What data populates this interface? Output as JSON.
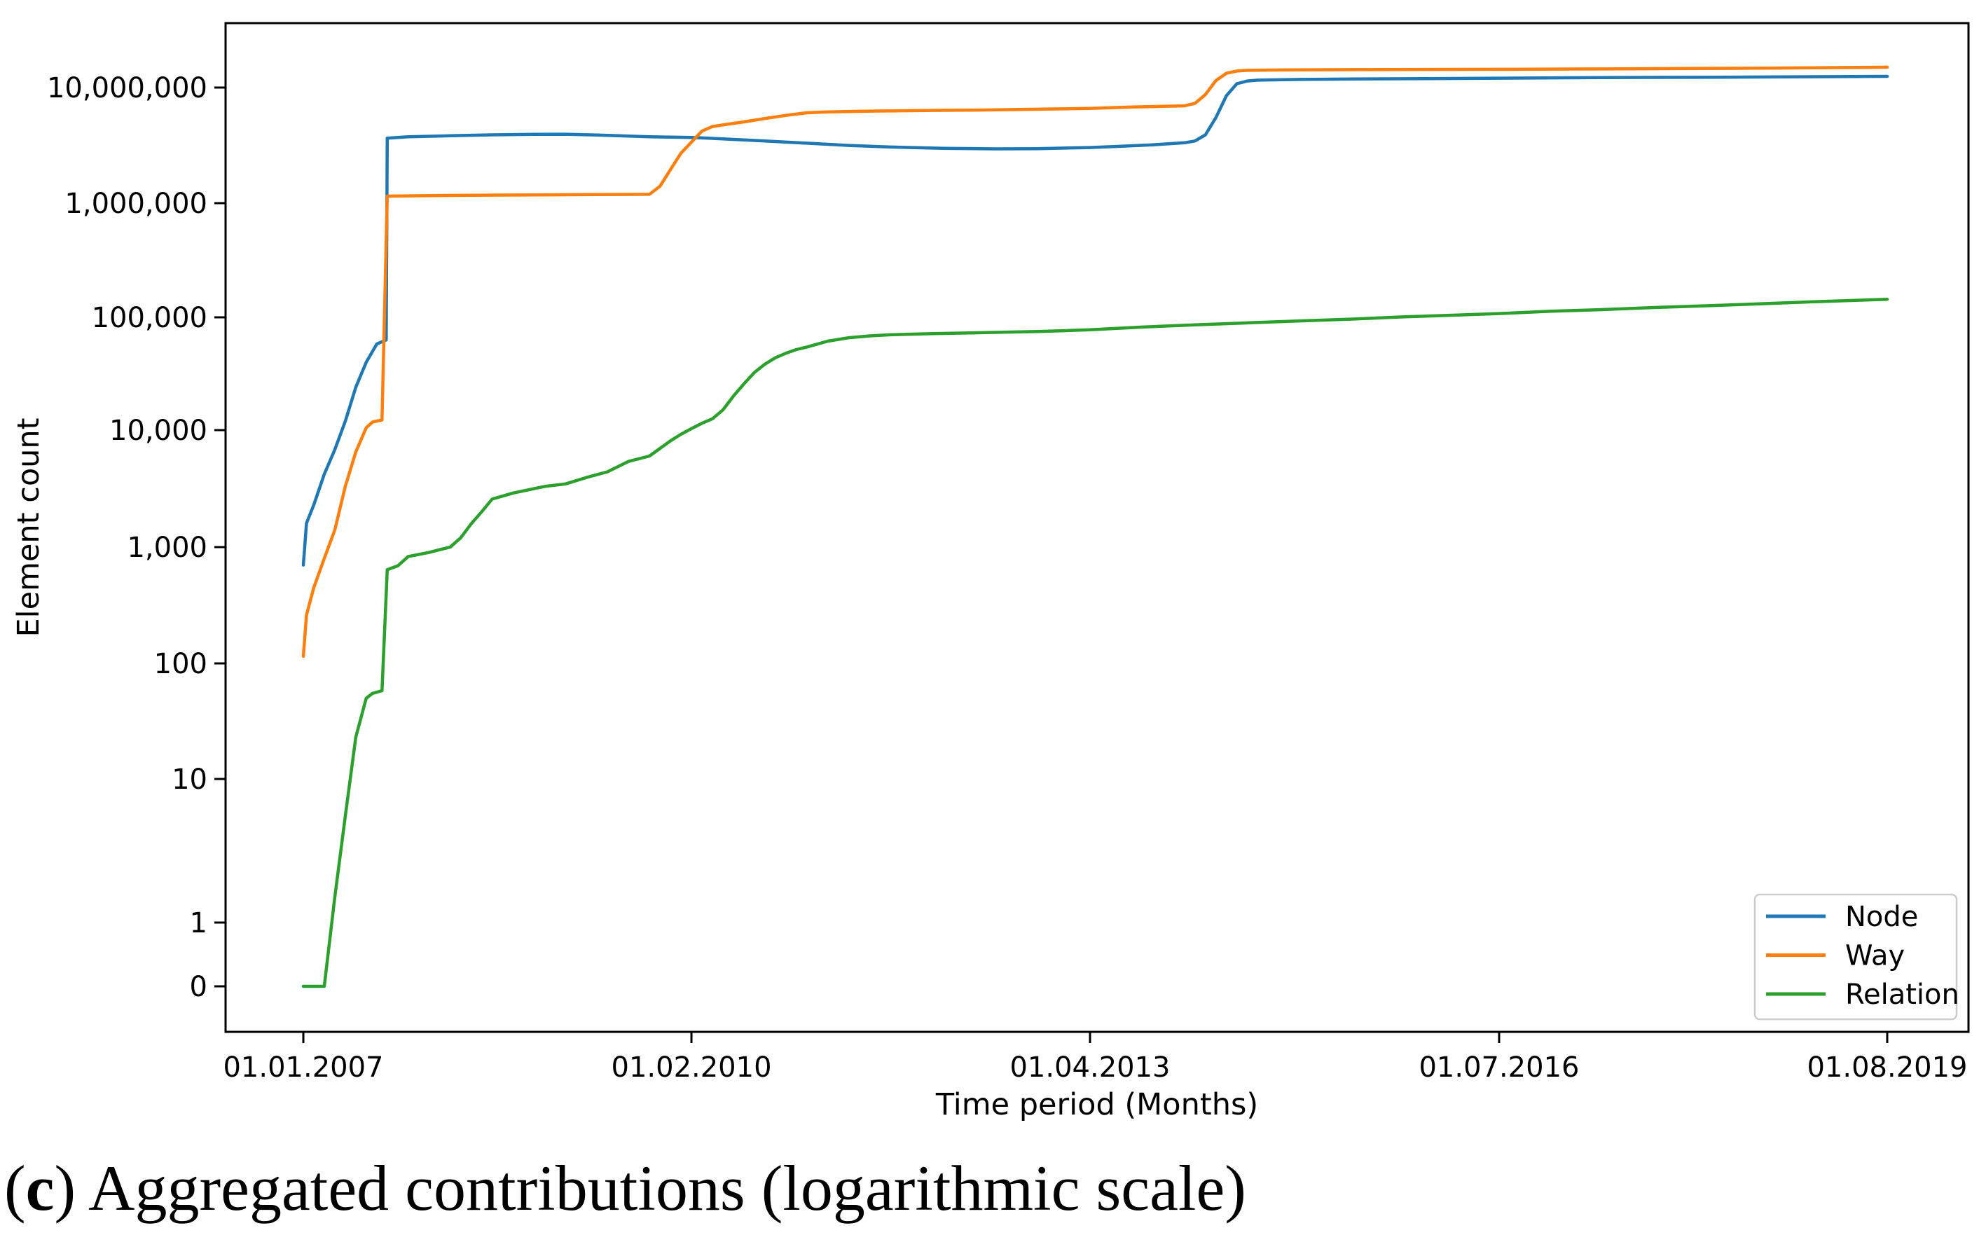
{
  "figure": {
    "caption": {
      "paren_open": "(",
      "bold_letter": "c",
      "rest": ") Aggregated contributions (logarithmic scale)"
    }
  },
  "chart_data": {
    "type": "line",
    "title": "",
    "xlabel": "Time period (Months)",
    "ylabel": "Element count",
    "y_scale": "symlog",
    "grid": false,
    "x_range_months": [
      0,
      151
    ],
    "x_ticks": [
      {
        "label": "01.01.2007",
        "month": 0
      },
      {
        "label": "01.02.2010",
        "month": 37
      },
      {
        "label": "01.04.2013",
        "month": 75
      },
      {
        "label": "01.07.2016",
        "month": 114
      },
      {
        "label": "01.08.2019",
        "month": 151
      }
    ],
    "y_ticks": [
      {
        "label": "10,000,000",
        "value": 10000000
      },
      {
        "label": "1,000,000",
        "value": 1000000
      },
      {
        "label": "100,000",
        "value": 100000
      },
      {
        "label": "10,000",
        "value": 10000
      },
      {
        "label": "1,000",
        "value": 1000
      },
      {
        "label": "100",
        "value": 100
      },
      {
        "label": "10",
        "value": 10
      },
      {
        "label": "1",
        "value": 1
      },
      {
        "label": "0",
        "value": 0
      }
    ],
    "legend": {
      "position": "lower right"
    },
    "series": [
      {
        "name": "Node",
        "color": "#1f77b4",
        "points": [
          [
            0,
            700
          ],
          [
            0.3,
            1600
          ],
          [
            1,
            2300
          ],
          [
            2,
            4200
          ],
          [
            3,
            6800
          ],
          [
            4,
            12000
          ],
          [
            5,
            24000
          ],
          [
            6,
            40000
          ],
          [
            7,
            58000
          ],
          [
            7.9,
            63000
          ],
          [
            8,
            3650000
          ],
          [
            10,
            3750000
          ],
          [
            14,
            3830000
          ],
          [
            18,
            3900000
          ],
          [
            22,
            3940000
          ],
          [
            25,
            3950000
          ],
          [
            28,
            3880000
          ],
          [
            31,
            3800000
          ],
          [
            33,
            3750000
          ],
          [
            35,
            3730000
          ],
          [
            37,
            3700000
          ],
          [
            40,
            3600000
          ],
          [
            44,
            3450000
          ],
          [
            48,
            3300000
          ],
          [
            52,
            3160000
          ],
          [
            56,
            3060000
          ],
          [
            61,
            2980000
          ],
          [
            66,
            2950000
          ],
          [
            70,
            2960000
          ],
          [
            75,
            3030000
          ],
          [
            78,
            3110000
          ],
          [
            81,
            3200000
          ],
          [
            84,
            3330000
          ],
          [
            85,
            3450000
          ],
          [
            86,
            3900000
          ],
          [
            87,
            5500000
          ],
          [
            88,
            8500000
          ],
          [
            89,
            10800000
          ],
          [
            90,
            11400000
          ],
          [
            91,
            11600000
          ],
          [
            95,
            11750000
          ],
          [
            100,
            11850000
          ],
          [
            107,
            11950000
          ],
          [
            114,
            12050000
          ],
          [
            121,
            12150000
          ],
          [
            128,
            12250000
          ],
          [
            135,
            12300000
          ],
          [
            143,
            12400000
          ],
          [
            151,
            12500000
          ]
        ]
      },
      {
        "name": "Way",
        "color": "#ff7f0e",
        "points": [
          [
            0,
            115
          ],
          [
            0.3,
            260
          ],
          [
            1,
            450
          ],
          [
            2,
            800
          ],
          [
            3,
            1400
          ],
          [
            4,
            3300
          ],
          [
            5,
            6500
          ],
          [
            6,
            10500
          ],
          [
            6.6,
            11800
          ],
          [
            7.5,
            12300
          ],
          [
            8,
            1150000
          ],
          [
            12,
            1162000
          ],
          [
            16,
            1170000
          ],
          [
            20,
            1176000
          ],
          [
            24,
            1181000
          ],
          [
            28,
            1186000
          ],
          [
            33,
            1192000
          ],
          [
            34,
            1400000
          ],
          [
            35,
            1950000
          ],
          [
            36,
            2700000
          ],
          [
            37,
            3370000
          ],
          [
            38,
            4200000
          ],
          [
            39,
            4600000
          ],
          [
            40,
            4750000
          ],
          [
            42,
            5050000
          ],
          [
            44,
            5400000
          ],
          [
            46,
            5750000
          ],
          [
            48,
            6050000
          ],
          [
            50,
            6150000
          ],
          [
            53,
            6230000
          ],
          [
            57,
            6300000
          ],
          [
            61,
            6350000
          ],
          [
            65,
            6400000
          ],
          [
            70,
            6500000
          ],
          [
            75,
            6600000
          ],
          [
            79,
            6780000
          ],
          [
            82,
            6880000
          ],
          [
            84,
            6950000
          ],
          [
            85,
            7300000
          ],
          [
            86,
            8700000
          ],
          [
            87,
            11500000
          ],
          [
            88,
            13300000
          ],
          [
            89,
            13900000
          ],
          [
            90,
            14100000
          ],
          [
            93,
            14200000
          ],
          [
            100,
            14300000
          ],
          [
            107,
            14350000
          ],
          [
            114,
            14400000
          ],
          [
            121,
            14480000
          ],
          [
            128,
            14550000
          ],
          [
            135,
            14650000
          ],
          [
            143,
            14800000
          ],
          [
            151,
            15000000
          ]
        ]
      },
      {
        "name": "Relation",
        "color": "#2ca02c",
        "points": [
          [
            0,
            0
          ],
          [
            2,
            0
          ],
          [
            3,
            1.5
          ],
          [
            4,
            5.5
          ],
          [
            5,
            23
          ],
          [
            6,
            50
          ],
          [
            6.6,
            55
          ],
          [
            7.5,
            58
          ],
          [
            8,
            640
          ],
          [
            9,
            690
          ],
          [
            10,
            830
          ],
          [
            12,
            900
          ],
          [
            13,
            950
          ],
          [
            14,
            1000
          ],
          [
            15,
            1200
          ],
          [
            16,
            1580
          ],
          [
            17,
            2000
          ],
          [
            18,
            2570
          ],
          [
            20,
            2900
          ],
          [
            23,
            3300
          ],
          [
            25,
            3470
          ],
          [
            27,
            3940
          ],
          [
            29,
            4400
          ],
          [
            31,
            5400
          ],
          [
            33,
            6000
          ],
          [
            35,
            8100
          ],
          [
            36,
            9200
          ],
          [
            37,
            10300
          ],
          [
            38,
            11500
          ],
          [
            39,
            12600
          ],
          [
            40,
            15100
          ],
          [
            41,
            20000
          ],
          [
            42,
            25700
          ],
          [
            43,
            32400
          ],
          [
            44,
            38400
          ],
          [
            45,
            43800
          ],
          [
            46,
            48000
          ],
          [
            47,
            51800
          ],
          [
            48,
            54500
          ],
          [
            50,
            61500
          ],
          [
            52,
            66000
          ],
          [
            54,
            68500
          ],
          [
            56,
            70000
          ],
          [
            60,
            71800
          ],
          [
            65,
            73200
          ],
          [
            70,
            74800
          ],
          [
            75,
            77500
          ],
          [
            80,
            82000
          ],
          [
            85,
            85800
          ],
          [
            90,
            89300
          ],
          [
            95,
            93000
          ],
          [
            100,
            96500
          ],
          [
            105,
            101000
          ],
          [
            110,
            104700
          ],
          [
            114,
            108000
          ],
          [
            119,
            113000
          ],
          [
            124,
            117000
          ],
          [
            129,
            122000
          ],
          [
            134,
            126500
          ],
          [
            139,
            131500
          ],
          [
            144,
            137000
          ],
          [
            151,
            144000
          ]
        ]
      }
    ]
  }
}
